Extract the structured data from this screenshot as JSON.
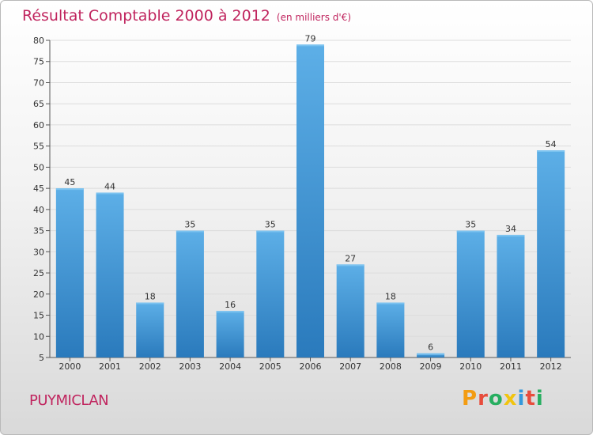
{
  "title": "Résultat Comptable 2000 à 2012",
  "subtitle": "(en milliers d'€)",
  "place": "PUYMICLAN",
  "logo": {
    "text": "Proxiti",
    "colors": [
      "#f39c12",
      "#e74c3c",
      "#27ae60",
      "#f1c40f",
      "#3498db",
      "#e74c3c",
      "#27ae60"
    ]
  },
  "colors": {
    "bar_light": "#5aaee6",
    "bar_dark": "#2a7fbf",
    "accent": "#c0245e"
  },
  "chart_data": {
    "type": "bar",
    "categories": [
      "2000",
      "2001",
      "2002",
      "2003",
      "2004",
      "2005",
      "2006",
      "2007",
      "2008",
      "2009",
      "2010",
      "2011",
      "2012"
    ],
    "values": [
      45,
      44,
      18,
      35,
      16,
      35,
      79,
      27,
      18,
      6,
      35,
      34,
      54
    ],
    "ylim": [
      5,
      80
    ],
    "yticks": [
      5,
      10,
      15,
      20,
      25,
      30,
      35,
      40,
      45,
      50,
      55,
      60,
      65,
      70,
      75,
      80
    ],
    "grid": true
  }
}
